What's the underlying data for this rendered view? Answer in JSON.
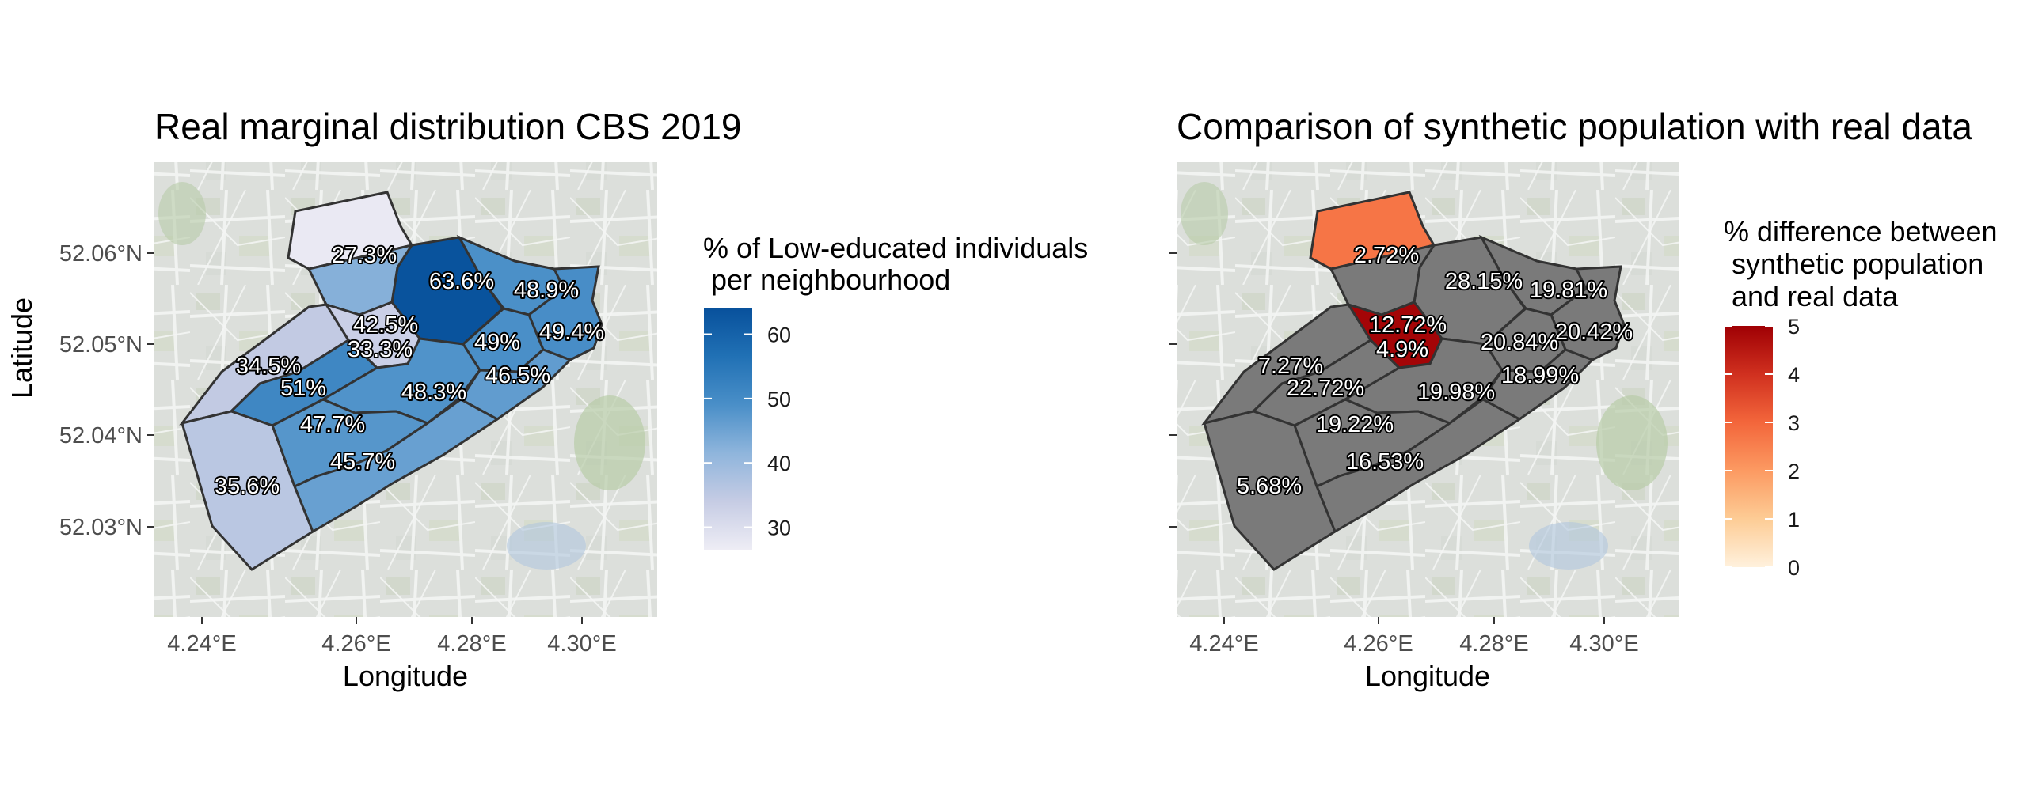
{
  "panels": [
    {
      "title": "Real marginal distribution CBS 2019",
      "x_axis_title": "Longitude",
      "y_axis_title": "Latitude",
      "x_ticks": [
        "4.24°E",
        "4.26°E",
        "4.28°E",
        "4.30°E"
      ],
      "y_ticks": [
        "52.06°N",
        "52.05°N",
        "52.04°N",
        "52.03°N"
      ],
      "legend": {
        "title_lines": [
          "% of Low-educated individuals",
          " per neighbourhood"
        ],
        "ticks": [
          "60",
          "50",
          "40",
          "30"
        ],
        "range": [
          26.5,
          64
        ],
        "tick_values": [
          60,
          50,
          40,
          30
        ],
        "colors": [
          "#eeedf5",
          "#c6cce4",
          "#8fb5dc",
          "#4a8fc8",
          "#2171b5",
          "#08519c"
        ]
      },
      "regions": [
        {
          "id": "r-north",
          "label": "27.3%",
          "value": 27.3
        },
        {
          "id": "r-ne-center",
          "label": "63.6%",
          "value": 63.6
        },
        {
          "id": "r-east-top",
          "label": "48.9%",
          "value": 48.9
        },
        {
          "id": "r-east-strip",
          "label": "49.4%",
          "value": 49.4
        },
        {
          "id": "r-center-a",
          "label": "42.5%",
          "value": 42.5
        },
        {
          "id": "r-center-b",
          "label": "33.3%",
          "value": 33.3
        },
        {
          "id": "r-center-e",
          "label": "49%",
          "value": 49
        },
        {
          "id": "r-west-top",
          "label": "34.5%",
          "value": 34.5
        },
        {
          "id": "r-mid-west",
          "label": "51%",
          "value": 51
        },
        {
          "id": "r-center-se",
          "label": "48.3%",
          "value": 48.3
        },
        {
          "id": "r-east-bottom",
          "label": "46.5%",
          "value": 46.5
        },
        {
          "id": "r-mid",
          "label": "47.7%",
          "value": 47.7
        },
        {
          "id": "r-south-mid",
          "label": "45.7%",
          "value": 45.7
        },
        {
          "id": "r-southwest",
          "label": "35.6%",
          "value": 35.6
        }
      ]
    },
    {
      "title": "Comparison of synthetic population with real data",
      "x_axis_title": "Longitude",
      "x_ticks": [
        "4.24°E",
        "4.26°E",
        "4.28°E",
        "4.30°E"
      ],
      "legend": {
        "title_lines": [
          "% difference between",
          " synthetic population",
          " and real data"
        ],
        "ticks": [
          "5",
          "4",
          "3",
          "2",
          "1",
          "0"
        ],
        "range": [
          0,
          5
        ],
        "tick_values": [
          5,
          4,
          3,
          2,
          1,
          0
        ],
        "colors": [
          "#fff1dd",
          "#fdcc95",
          "#fc9a62",
          "#f3663b",
          "#d0301f",
          "#9f0004"
        ],
        "out_of_range_color": "#7a7a7a"
      },
      "regions": [
        {
          "id": "r-north",
          "label": "2.72%",
          "value": 2.72
        },
        {
          "id": "r-ne-center",
          "label": "28.15%",
          "value": 28.15
        },
        {
          "id": "r-east-top",
          "label": "19.81%",
          "value": 19.81
        },
        {
          "id": "r-east-strip",
          "label": "20.42%",
          "value": 20.42
        },
        {
          "id": "r-center-a",
          "label": "12.72%",
          "value": 12.72
        },
        {
          "id": "r-center-b",
          "label": "4.9%",
          "value": 4.9
        },
        {
          "id": "r-center-e",
          "label": "20.84%",
          "value": 20.84
        },
        {
          "id": "r-west-top",
          "label": "7.27%",
          "value": 7.27
        },
        {
          "id": "r-mid-west",
          "label": "22.72%",
          "value": 22.72
        },
        {
          "id": "r-center-se",
          "label": "19.98%",
          "value": 19.98
        },
        {
          "id": "r-east-bottom",
          "label": "18.99%",
          "value": 18.99
        },
        {
          "id": "r-mid",
          "label": "19.22%",
          "value": 19.22
        },
        {
          "id": "r-south-mid",
          "label": "16.53%",
          "value": 16.53
        },
        {
          "id": "r-southwest",
          "label": "5.68%",
          "value": 5.68
        }
      ]
    }
  ]
}
